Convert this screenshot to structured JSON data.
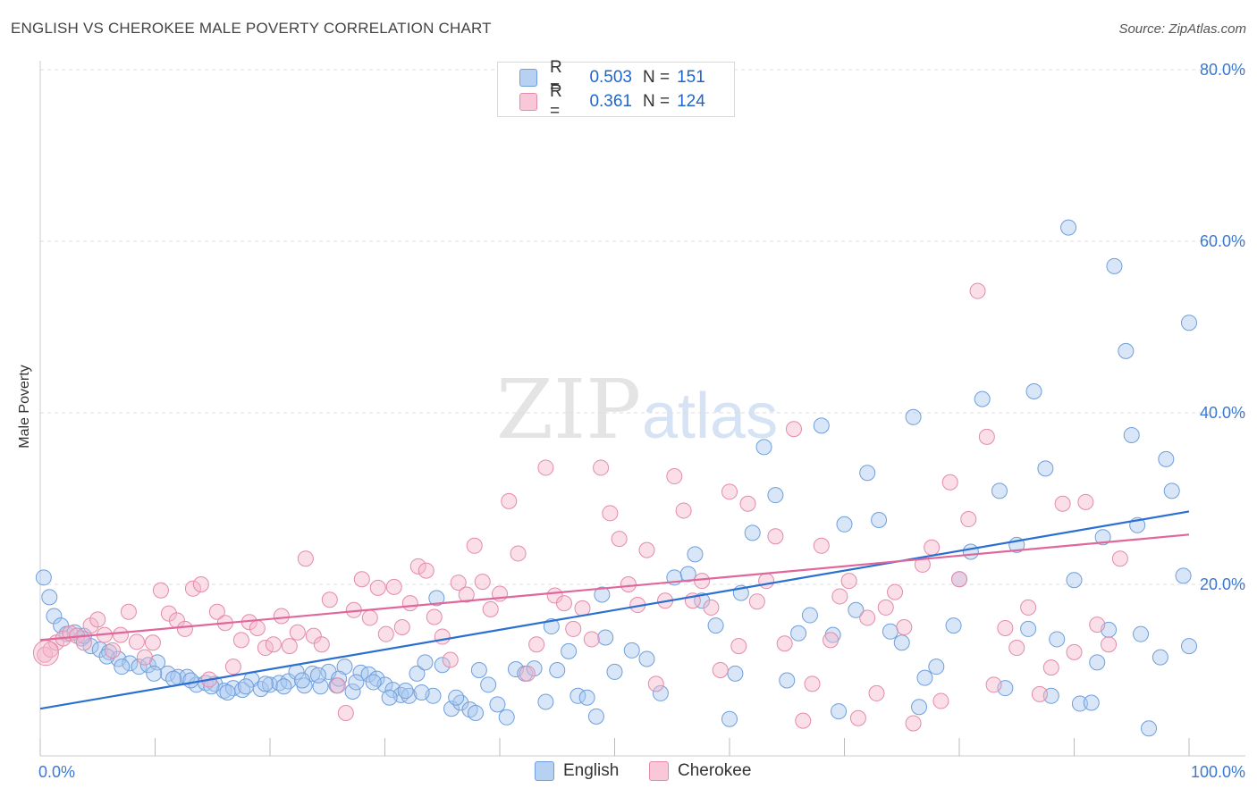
{
  "title": "ENGLISH VS CHEROKEE MALE POVERTY CORRELATION CHART",
  "source": "Source: ZipAtlas.com",
  "watermark": {
    "zip": "ZIP",
    "atlas": "atlas"
  },
  "legend": {
    "rows": [
      {
        "r_label": "R =",
        "r_value": "0.503",
        "n_label": "N =",
        "n_value": "151"
      },
      {
        "r_label": "R =",
        "r_value": "0.361",
        "n_label": "N =",
        "n_value": "124"
      }
    ]
  },
  "bottom_legend": [
    "English",
    "Cherokee"
  ],
  "colors": {
    "english_fill": "#a8c8f0",
    "english_stroke": "#6f9fdc",
    "english_line": "#2a6fd1",
    "cherokee_fill": "#f5b7cb",
    "cherokee_stroke": "#e58aa8",
    "cherokee_line": "#e0679a",
    "tick_text": "#3a78d6",
    "grid": "#dddddd"
  },
  "chart_data": {
    "type": "scatter",
    "title": "ENGLISH VS CHEROKEE MALE POVERTY CORRELATION CHART",
    "xlabel": "",
    "ylabel": "Male Poverty",
    "xlim": [
      0,
      100
    ],
    "ylim": [
      0,
      80
    ],
    "x_tick_labels": [
      "0.0%",
      "100.0%"
    ],
    "y_tick_values": [
      20,
      40,
      60,
      80
    ],
    "y_tick_labels": [
      "20.0%",
      "40.0%",
      "60.0%",
      "80.0%"
    ],
    "grid": true,
    "legend_position": "top-center",
    "series": [
      {
        "name": "English",
        "r": 0.503,
        "n": 151,
        "trend": {
          "x": [
            0,
            100
          ],
          "y": [
            5.5,
            28.5
          ]
        },
        "points": [
          [
            0.3,
            20.8
          ],
          [
            0.8,
            18.5
          ],
          [
            1.2,
            16.3
          ],
          [
            1.8,
            15.2
          ],
          [
            2.3,
            14.2
          ],
          [
            3.0,
            14.4
          ],
          [
            3.6,
            13.7
          ],
          [
            4.4,
            12.8
          ],
          [
            5.2,
            12.4
          ],
          [
            6.0,
            12.1
          ],
          [
            6.8,
            11.3
          ],
          [
            7.8,
            10.8
          ],
          [
            8.6,
            10.4
          ],
          [
            9.4,
            10.6
          ],
          [
            10.2,
            10.9
          ],
          [
            11.1,
            9.6
          ],
          [
            12.0,
            9.2
          ],
          [
            12.8,
            9.2
          ],
          [
            13.6,
            8.3
          ],
          [
            14.4,
            8.5
          ],
          [
            15.2,
            8.4
          ],
          [
            16.0,
            7.6
          ],
          [
            16.8,
            7.9
          ],
          [
            17.6,
            7.7
          ],
          [
            18.4,
            8.9
          ],
          [
            19.2,
            7.8
          ],
          [
            20.0,
            8.3
          ],
          [
            20.8,
            8.5
          ],
          [
            21.6,
            8.7
          ],
          [
            22.3,
            9.8
          ],
          [
            23.0,
            8.2
          ],
          [
            23.7,
            9.6
          ],
          [
            24.4,
            8.1
          ],
          [
            25.1,
            9.8
          ],
          [
            25.8,
            8.2
          ],
          [
            26.5,
            10.4
          ],
          [
            27.2,
            7.5
          ],
          [
            27.9,
            9.7
          ],
          [
            28.6,
            9.5
          ],
          [
            29.3,
            9.0
          ],
          [
            30.0,
            8.3
          ],
          [
            30.7,
            7.7
          ],
          [
            31.4,
            7.1
          ],
          [
            32.1,
            7.0
          ],
          [
            32.8,
            9.6
          ],
          [
            33.5,
            10.9
          ],
          [
            34.2,
            7.0
          ],
          [
            35.0,
            10.6
          ],
          [
            35.8,
            5.5
          ],
          [
            36.6,
            6.2
          ],
          [
            37.4,
            5.4
          ],
          [
            38.2,
            10.0
          ],
          [
            39.0,
            8.3
          ],
          [
            39.8,
            6.0
          ],
          [
            40.6,
            4.5
          ],
          [
            41.4,
            10.1
          ],
          [
            42.2,
            9.6
          ],
          [
            43.0,
            10.2
          ],
          [
            44.0,
            6.3
          ],
          [
            45.0,
            10.0
          ],
          [
            46.0,
            12.2
          ],
          [
            46.8,
            7.0
          ],
          [
            47.6,
            6.8
          ],
          [
            48.4,
            4.6
          ],
          [
            49.2,
            13.8
          ],
          [
            50.0,
            9.8
          ],
          [
            51.5,
            12.3
          ],
          [
            52.8,
            11.3
          ],
          [
            54.0,
            7.3
          ],
          [
            55.2,
            20.8
          ],
          [
            56.4,
            21.2
          ],
          [
            57.6,
            18.1
          ],
          [
            58.8,
            15.2
          ],
          [
            60.0,
            4.3
          ],
          [
            61.0,
            19.0
          ],
          [
            62.0,
            26.0
          ],
          [
            63.0,
            36.0
          ],
          [
            64.0,
            30.4
          ],
          [
            65.0,
            8.8
          ],
          [
            66.0,
            14.3
          ],
          [
            67.0,
            16.4
          ],
          [
            68.0,
            38.5
          ],
          [
            69.0,
            14.1
          ],
          [
            70.0,
            27.0
          ],
          [
            71.0,
            17.0
          ],
          [
            72.0,
            33.0
          ],
          [
            73.0,
            27.5
          ],
          [
            74.0,
            14.5
          ],
          [
            75.0,
            13.2
          ],
          [
            76.0,
            39.5
          ],
          [
            77.0,
            9.1
          ],
          [
            78.0,
            10.4
          ],
          [
            79.5,
            15.2
          ],
          [
            81.0,
            23.8
          ],
          [
            82.0,
            41.6
          ],
          [
            83.5,
            30.9
          ],
          [
            85.0,
            24.6
          ],
          [
            86.5,
            42.5
          ],
          [
            87.5,
            33.5
          ],
          [
            88.5,
            13.6
          ],
          [
            89.5,
            61.6
          ],
          [
            90.5,
            6.1
          ],
          [
            91.5,
            6.2
          ],
          [
            92.0,
            10.9
          ],
          [
            92.5,
            25.5
          ],
          [
            93.5,
            57.1
          ],
          [
            94.5,
            47.2
          ],
          [
            95.0,
            37.4
          ],
          [
            95.5,
            26.9
          ],
          [
            96.5,
            3.2
          ],
          [
            98.0,
            34.6
          ],
          [
            98.5,
            30.9
          ],
          [
            99.5,
            21.0
          ],
          [
            100.0,
            12.8
          ],
          [
            100.0,
            50.5
          ],
          [
            34.5,
            18.4
          ],
          [
            44.5,
            15.1
          ],
          [
            48.9,
            18.8
          ],
          [
            57.0,
            23.5
          ],
          [
            60.5,
            9.6
          ],
          [
            69.5,
            5.2
          ],
          [
            76.5,
            5.7
          ],
          [
            80.0,
            20.6
          ],
          [
            84.0,
            7.9
          ],
          [
            86.0,
            14.8
          ],
          [
            88.0,
            7.0
          ],
          [
            90.0,
            20.5
          ],
          [
            93.0,
            14.7
          ],
          [
            95.8,
            14.2
          ],
          [
            97.5,
            11.5
          ],
          [
            3.8,
            14.0
          ],
          [
            5.8,
            11.6
          ],
          [
            7.1,
            10.4
          ],
          [
            9.9,
            9.6
          ],
          [
            11.6,
            9.0
          ],
          [
            13.1,
            8.8
          ],
          [
            14.9,
            8.1
          ],
          [
            16.3,
            7.4
          ],
          [
            17.9,
            8.1
          ],
          [
            19.6,
            8.4
          ],
          [
            21.2,
            8.1
          ],
          [
            22.8,
            8.8
          ],
          [
            24.2,
            9.4
          ],
          [
            26.0,
            9.0
          ],
          [
            27.5,
            8.6
          ],
          [
            29.0,
            8.6
          ],
          [
            30.4,
            6.8
          ],
          [
            31.8,
            7.6
          ],
          [
            33.2,
            7.4
          ],
          [
            36.2,
            6.8
          ],
          [
            37.9,
            5.0
          ]
        ]
      },
      {
        "name": "Cherokee",
        "r": 0.361,
        "n": 124,
        "trend": {
          "x": [
            0,
            100
          ],
          "y": [
            13.5,
            25.8
          ]
        },
        "points": [
          [
            0.4,
            11.8
          ],
          [
            0.9,
            12.4
          ],
          [
            1.4,
            13.2
          ],
          [
            2.0,
            13.7
          ],
          [
            2.6,
            14.3
          ],
          [
            3.2,
            14.0
          ],
          [
            3.8,
            13.2
          ],
          [
            4.4,
            15.2
          ],
          [
            5.0,
            15.9
          ],
          [
            5.6,
            14.1
          ],
          [
            6.3,
            12.3
          ],
          [
            7.0,
            14.1
          ],
          [
            7.7,
            16.8
          ],
          [
            8.4,
            13.3
          ],
          [
            9.1,
            11.5
          ],
          [
            9.8,
            13.2
          ],
          [
            10.5,
            19.3
          ],
          [
            11.2,
            16.6
          ],
          [
            11.9,
            15.8
          ],
          [
            12.6,
            14.8
          ],
          [
            13.3,
            19.5
          ],
          [
            14.0,
            20.0
          ],
          [
            14.7,
            8.9
          ],
          [
            15.4,
            16.8
          ],
          [
            16.1,
            15.5
          ],
          [
            16.8,
            10.4
          ],
          [
            17.5,
            13.5
          ],
          [
            18.2,
            15.6
          ],
          [
            18.9,
            14.9
          ],
          [
            19.6,
            12.6
          ],
          [
            20.3,
            13.0
          ],
          [
            21.0,
            16.3
          ],
          [
            21.7,
            12.8
          ],
          [
            22.4,
            14.4
          ],
          [
            23.1,
            23.0
          ],
          [
            23.8,
            14.0
          ],
          [
            24.5,
            13.0
          ],
          [
            25.2,
            18.2
          ],
          [
            25.9,
            8.2
          ],
          [
            26.6,
            5.0
          ],
          [
            27.3,
            17.0
          ],
          [
            28.0,
            20.6
          ],
          [
            28.7,
            16.1
          ],
          [
            29.4,
            19.6
          ],
          [
            30.1,
            14.2
          ],
          [
            30.8,
            19.7
          ],
          [
            31.5,
            15.0
          ],
          [
            32.2,
            17.8
          ],
          [
            32.9,
            22.1
          ],
          [
            33.6,
            21.6
          ],
          [
            34.3,
            16.2
          ],
          [
            35.0,
            13.9
          ],
          [
            35.7,
            11.2
          ],
          [
            36.4,
            20.2
          ],
          [
            37.1,
            18.8
          ],
          [
            37.8,
            24.5
          ],
          [
            38.5,
            20.3
          ],
          [
            39.2,
            17.1
          ],
          [
            40.0,
            18.9
          ],
          [
            40.8,
            29.7
          ],
          [
            41.6,
            23.6
          ],
          [
            42.4,
            9.6
          ],
          [
            43.2,
            13.0
          ],
          [
            44.0,
            33.6
          ],
          [
            44.8,
            18.7
          ],
          [
            45.6,
            17.8
          ],
          [
            46.4,
            14.8
          ],
          [
            47.2,
            17.2
          ],
          [
            48.0,
            13.6
          ],
          [
            48.8,
            33.6
          ],
          [
            49.6,
            28.3
          ],
          [
            50.4,
            25.3
          ],
          [
            51.2,
            20.0
          ],
          [
            52.0,
            17.6
          ],
          [
            52.8,
            24.0
          ],
          [
            53.6,
            8.4
          ],
          [
            54.4,
            18.1
          ],
          [
            55.2,
            32.6
          ],
          [
            56.0,
            28.6
          ],
          [
            56.8,
            18.1
          ],
          [
            57.6,
            20.4
          ],
          [
            58.4,
            17.3
          ],
          [
            59.2,
            10.0
          ],
          [
            60.0,
            30.8
          ],
          [
            60.8,
            12.8
          ],
          [
            61.6,
            29.4
          ],
          [
            62.4,
            18.0
          ],
          [
            63.2,
            20.4
          ],
          [
            64.0,
            25.6
          ],
          [
            64.8,
            13.1
          ],
          [
            65.6,
            38.1
          ],
          [
            66.4,
            4.1
          ],
          [
            67.2,
            8.4
          ],
          [
            68.0,
            24.5
          ],
          [
            68.8,
            13.5
          ],
          [
            69.6,
            18.6
          ],
          [
            70.4,
            20.4
          ],
          [
            71.2,
            4.4
          ],
          [
            72.0,
            16.1
          ],
          [
            72.8,
            7.3
          ],
          [
            73.6,
            17.3
          ],
          [
            74.4,
            19.1
          ],
          [
            75.2,
            15.0
          ],
          [
            76.0,
            3.8
          ],
          [
            76.8,
            22.3
          ],
          [
            77.6,
            24.3
          ],
          [
            78.4,
            6.4
          ],
          [
            79.2,
            31.9
          ],
          [
            80.0,
            20.6
          ],
          [
            80.8,
            27.6
          ],
          [
            81.6,
            54.2
          ],
          [
            82.4,
            37.2
          ],
          [
            83.0,
            8.3
          ],
          [
            84.0,
            14.9
          ],
          [
            85.0,
            12.6
          ],
          [
            86.0,
            17.3
          ],
          [
            87.0,
            7.2
          ],
          [
            88.0,
            10.3
          ],
          [
            89.0,
            29.4
          ],
          [
            90.0,
            12.1
          ],
          [
            91.0,
            29.6
          ],
          [
            92.0,
            15.3
          ],
          [
            93.0,
            13.0
          ],
          [
            94.0,
            23.0
          ]
        ]
      }
    ]
  }
}
